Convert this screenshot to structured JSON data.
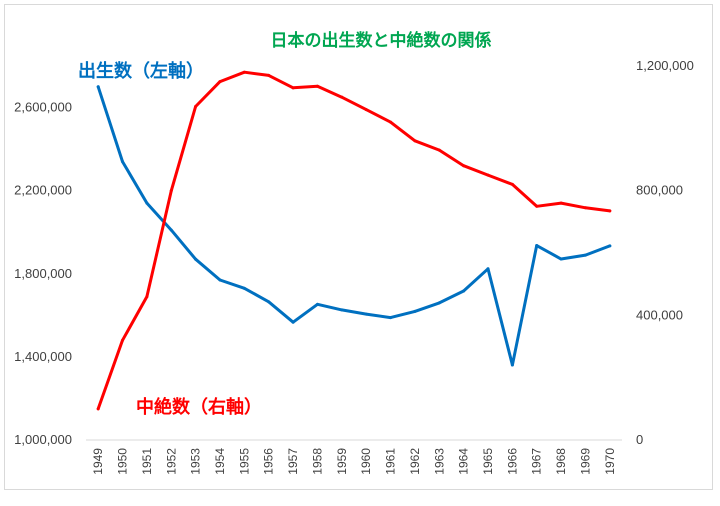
{
  "chart_data": {
    "type": "line",
    "title": "日本の出生数と中絶数の関係",
    "title_color": "#00a651",
    "categories": [
      "1949",
      "1950",
      "1951",
      "1952",
      "1953",
      "1954",
      "1955",
      "1956",
      "1957",
      "1958",
      "1959",
      "1960",
      "1961",
      "1962",
      "1963",
      "1964",
      "1965",
      "1966",
      "1967",
      "1968",
      "1969",
      "1970"
    ],
    "y_left": {
      "ticks": [
        "1,000,000",
        "1,400,000",
        "1,800,000",
        "2,200,000",
        "2,600,000"
      ],
      "min": 1000000,
      "max": 2800000
    },
    "y_right": {
      "ticks": [
        "0",
        "400,000",
        "800,000",
        "1,200,000"
      ],
      "min": 0,
      "max": 1200000
    },
    "grid": false,
    "series": [
      {
        "name": "出生数（左軸）",
        "axis": "left",
        "color": "#0070c0",
        "values": [
          2700000,
          2340000,
          2140000,
          2010000,
          1870000,
          1770000,
          1730000,
          1665000,
          1567000,
          1653000,
          1626000,
          1606000,
          1589000,
          1619000,
          1660000,
          1717000,
          1824000,
          1361000,
          1936000,
          1871000,
          1890000,
          1934000
        ]
      },
      {
        "name": "中絶数（右軸）",
        "axis": "right",
        "color": "#ff0000",
        "values": [
          100000,
          320000,
          460000,
          800000,
          1070000,
          1150000,
          1180000,
          1170000,
          1130000,
          1135000,
          1100000,
          1060000,
          1020000,
          960000,
          930000,
          880000,
          850000,
          820000,
          750000,
          760000,
          745000,
          735000
        ]
      }
    ]
  }
}
